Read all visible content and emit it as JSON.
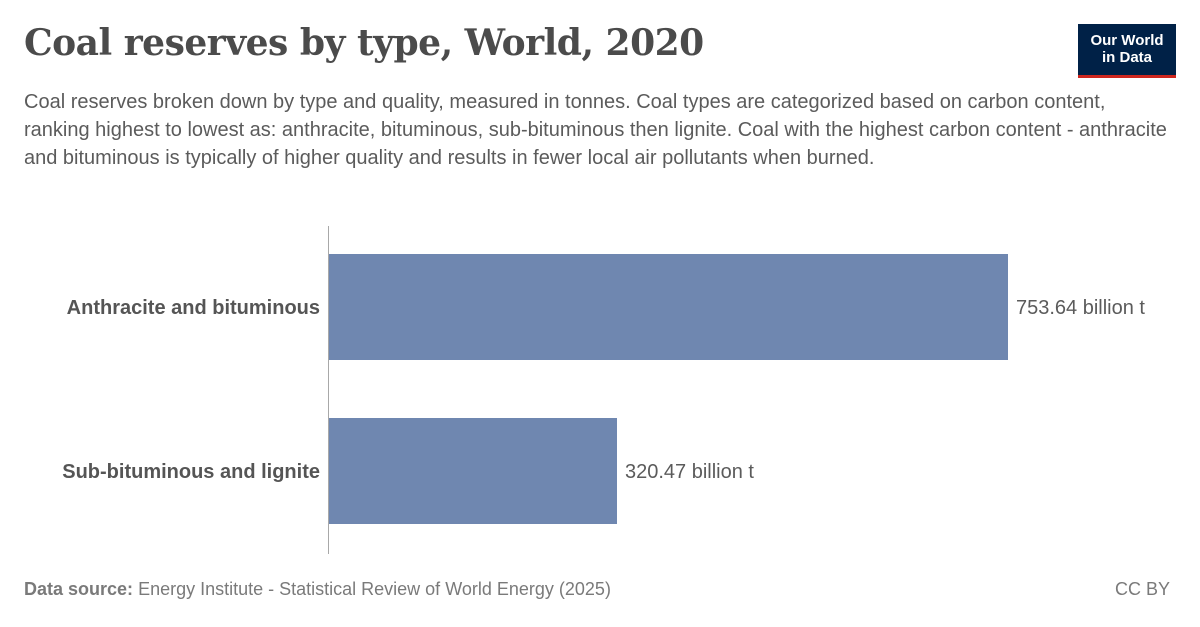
{
  "header": {
    "title": "Coal reserves by type, World, 2020",
    "subtitle": "Coal reserves broken down by type and quality, measured in tonnes. Coal types are categorized based on carbon content, ranking highest to lowest as: anthracite, bituminous, sub-bituminous then lignite. Coal with the highest carbon content - anthracite and bituminous is typically of higher quality and results in fewer local air pollutants when burned.",
    "logo_line1": "Our World",
    "logo_line2": "in Data"
  },
  "footer": {
    "source_label": "Data source:",
    "source_text": "Energy Institute - Statistical Review of World Energy (2025)",
    "license": "CC BY"
  },
  "colors": {
    "bar": "#6f87b0",
    "axis": "#a8a8a8",
    "logo_bg": "#002147",
    "logo_accent": "#ce261e"
  },
  "chart_data": {
    "type": "bar",
    "orientation": "horizontal",
    "categories": [
      "Anthracite and bituminous",
      "Sub-bituminous and lignite"
    ],
    "values": [
      753.64,
      320.47
    ],
    "value_labels": [
      "753.64 billion t",
      "320.47 billion t"
    ],
    "unit": "billion t",
    "xlim": [
      0,
      753.64
    ],
    "grid": false,
    "legend": "none"
  }
}
